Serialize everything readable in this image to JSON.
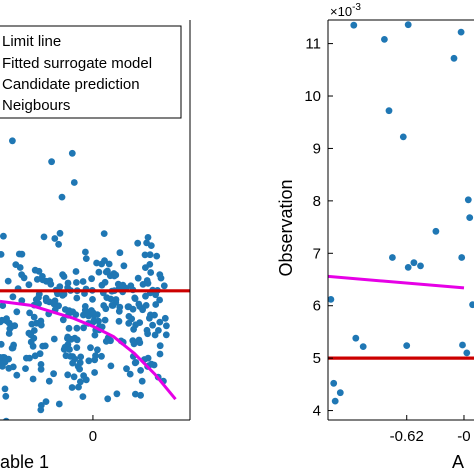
{
  "chart_data": [
    {
      "type": "scatter",
      "xlabel": "able 1",
      "ylabel": "",
      "x_ticks": [
        {
          "value": 0,
          "label": "0"
        }
      ],
      "xlim": [
        -0.45,
        0.47
      ],
      "ylim": [
        -0.62,
        1.3
      ],
      "legend": {
        "placement": "top-right",
        "entries": [
          "Limit line",
          "Fitted surrogate model",
          "Candidate prediction",
          "Neigbours"
        ]
      },
      "colors": {
        "scatter": "#1f77b4",
        "limit": "#cc0000",
        "surrogate": "#e600e6"
      },
      "limit_line": {
        "y": 0
      },
      "fitted_surrogate_model": {
        "x": [
          -0.45,
          -0.3,
          -0.2,
          -0.1,
          0,
          0.1,
          0.2,
          0.3,
          0.4
        ],
        "y": [
          -0.05,
          -0.07,
          -0.1,
          -0.13,
          -0.17,
          -0.22,
          -0.3,
          -0.4,
          -0.52
        ]
      },
      "neighbours": {
        "seed": 7,
        "count": 300,
        "x_range": [
          -0.45,
          0.36
        ],
        "y_mean": -0.15,
        "y_sd": 0.17,
        "outliers": [
          {
            "x": -0.42,
            "y": 0.9
          },
          {
            "x": -0.39,
            "y": 0.72
          },
          {
            "x": -0.2,
            "y": 0.62
          },
          {
            "x": -0.1,
            "y": 0.66
          },
          {
            "x": -0.09,
            "y": 0.52
          },
          {
            "x": -0.15,
            "y": 0.45
          },
          {
            "x": 0.26,
            "y": 0.23
          },
          {
            "x": 0.15,
            "y": 0.12
          },
          {
            "x": -0.25,
            "y": -0.55
          }
        ]
      }
    },
    {
      "type": "scatter",
      "xlabel": "A",
      "ylabel": "Observation",
      "y_multiplier": "×10",
      "y_exponent": "-3",
      "x_ticks": [
        {
          "value": -0.62,
          "label": "-0.62"
        },
        {
          "value": -0.6,
          "label": "-0"
        }
      ],
      "y_ticks": [
        {
          "value": 4,
          "label": "4"
        },
        {
          "value": 5,
          "label": "5"
        },
        {
          "value": 6,
          "label": "6"
        },
        {
          "value": 7,
          "label": "7"
        },
        {
          "value": 8,
          "label": "8"
        },
        {
          "value": 9,
          "label": "9"
        },
        {
          "value": 10,
          "label": "10"
        },
        {
          "value": 11,
          "label": "11"
        }
      ],
      "xlim": [
        -0.6475,
        -0.5965
      ],
      "ylim": [
        3.82,
        11.45
      ],
      "colors": {
        "scatter": "#1f77b4",
        "limit": "#cc0000",
        "surrogate": "#e600e6"
      },
      "limit_line": {
        "y": 5
      },
      "fitted_surrogate_model": {
        "x": [
          -0.6475,
          -0.6
        ],
        "y": [
          6.56,
          6.34
        ]
      },
      "points": [
        {
          "x": -0.6465,
          "y": 6.12
        },
        {
          "x": -0.6455,
          "y": 4.52
        },
        {
          "x": -0.645,
          "y": 4.18
        },
        {
          "x": -0.6432,
          "y": 4.34
        },
        {
          "x": -0.6385,
          "y": 11.35
        },
        {
          "x": -0.6352,
          "y": 5.22
        },
        {
          "x": -0.6378,
          "y": 5.38
        },
        {
          "x": -0.6278,
          "y": 11.08
        },
        {
          "x": -0.6262,
          "y": 9.72
        },
        {
          "x": -0.625,
          "y": 6.92
        },
        {
          "x": -0.6212,
          "y": 9.22
        },
        {
          "x": -0.62,
          "y": 5.24
        },
        {
          "x": -0.6195,
          "y": 11.36
        },
        {
          "x": -0.6175,
          "y": 6.82
        },
        {
          "x": -0.6195,
          "y": 6.73
        },
        {
          "x": -0.6152,
          "y": 6.76
        },
        {
          "x": -0.6098,
          "y": 7.42
        },
        {
          "x": -0.6035,
          "y": 10.72
        },
        {
          "x": -0.601,
          "y": 11.22
        },
        {
          "x": -0.6005,
          "y": 5.25
        },
        {
          "x": -0.5985,
          "y": 8.02
        },
        {
          "x": -0.598,
          "y": 7.68
        },
        {
          "x": -0.597,
          "y": 6.02
        },
        {
          "x": -0.599,
          "y": 5.1
        },
        {
          "x": -0.6008,
          "y": 6.92
        }
      ]
    }
  ]
}
